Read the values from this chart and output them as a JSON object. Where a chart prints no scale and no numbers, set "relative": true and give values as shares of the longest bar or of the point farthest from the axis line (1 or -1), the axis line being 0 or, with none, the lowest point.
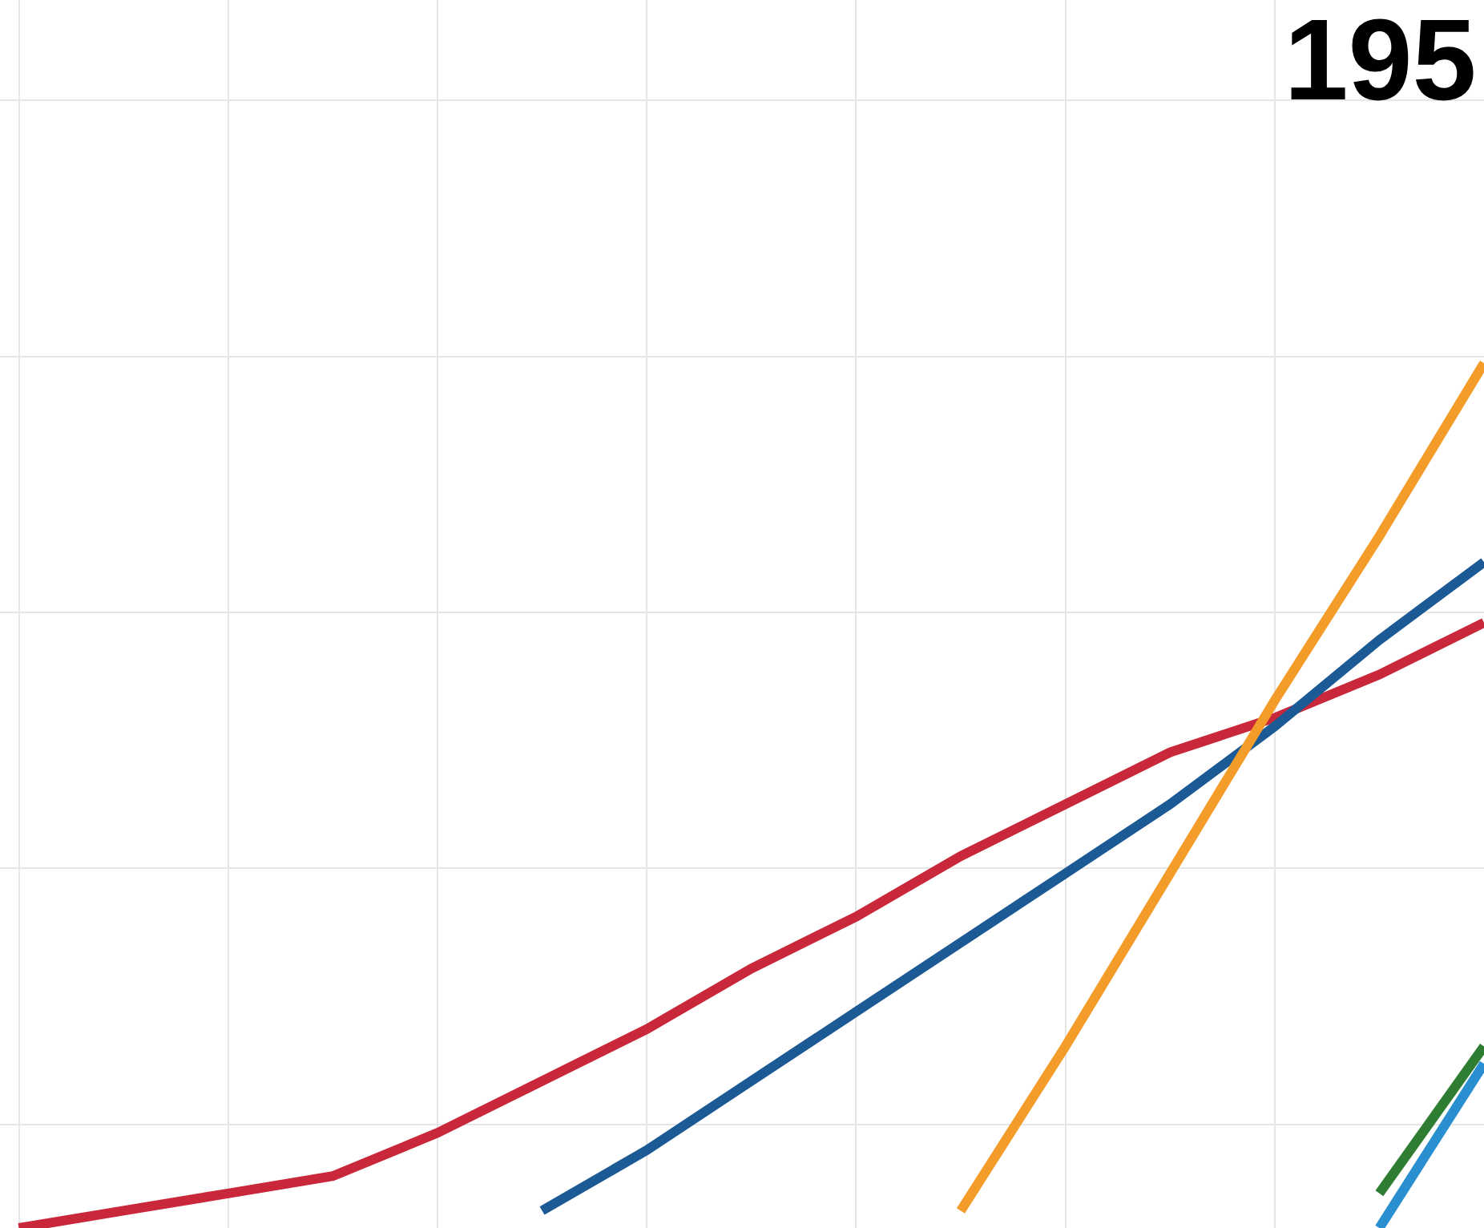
{
  "chart_data": {
    "type": "line",
    "title": "195",
    "relative": true,
    "grid": true,
    "categories": [
      null,
      null,
      null,
      null,
      null,
      null,
      null,
      null,
      null,
      null,
      null,
      null,
      null,
      null,
      null
    ],
    "series": [
      {
        "color": "#c8283a",
        "values": [
          0.0,
          0.02,
          0.04,
          0.06,
          0.11,
          0.17,
          0.23,
          0.3,
          0.36,
          0.43,
          0.49,
          0.55,
          0.59,
          0.64,
          0.7
        ]
      },
      {
        "color": "#1c5a96",
        "values": [
          null,
          null,
          null,
          null,
          null,
          0.02,
          0.09,
          0.17,
          0.25,
          0.33,
          0.41,
          0.49,
          0.58,
          0.68,
          0.77
        ]
      },
      {
        "color": "#f39c2a",
        "values": [
          null,
          null,
          null,
          null,
          null,
          null,
          null,
          null,
          null,
          0.02,
          0.21,
          0.41,
          0.61,
          0.8,
          1.0
        ]
      },
      {
        "color": "#2e7d32",
        "values": [
          null,
          null,
          null,
          null,
          null,
          null,
          null,
          null,
          null,
          null,
          null,
          null,
          null,
          0.04,
          0.21
        ]
      },
      {
        "color": "#2a8fd0",
        "values": [
          null,
          null,
          null,
          null,
          null,
          null,
          null,
          null,
          null,
          null,
          null,
          null,
          null,
          0.0,
          0.19
        ]
      }
    ]
  }
}
